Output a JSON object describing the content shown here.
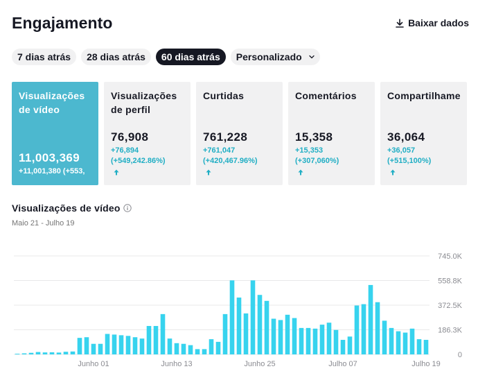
{
  "header": {
    "title": "Engajamento",
    "download_label": "Baixar dados",
    "download_icon": "download-icon"
  },
  "tabs": [
    {
      "label": "7 dias atrás",
      "active": false
    },
    {
      "label": "28 dias atrás",
      "active": false
    },
    {
      "label": "60 dias atrás",
      "active": true
    },
    {
      "label": "Personalizado",
      "active": false,
      "dropdown": true
    }
  ],
  "cards": [
    {
      "label": "Visualizações de vídeo",
      "value": "11,003,369",
      "delta": "+11,001,380 (+553,",
      "active": true
    },
    {
      "label": "Visualizações de perfil",
      "value": "76,908",
      "delta_line1": "+76,894",
      "delta_line2": "(+549,242.86%)",
      "arrow_icon": "arrow-up-icon"
    },
    {
      "label": "Curtidas",
      "value": "761,228",
      "delta_line1": "+761,047",
      "delta_line2": "(+420,467.96%)",
      "arrow_icon": "arrow-up-icon"
    },
    {
      "label": "Comentários",
      "value": "15,358",
      "delta_line1": "+15,353",
      "delta_line2": "(+307,060%)",
      "arrow_icon": "arrow-up-icon"
    },
    {
      "label": "Compartilhame",
      "value": "36,064",
      "delta_line1": "+36,057",
      "delta_line2": "(+515,100%)",
      "arrow_icon": "arrow-up-icon"
    }
  ],
  "chart_section": {
    "title": "Visualizações de vídeo",
    "info_icon": "info-icon",
    "date_range": "Maio 21 - Julho 19"
  },
  "colors": {
    "accent": "#4cb8cf",
    "bar": "#37d3ee",
    "delta_text": "#20aec4"
  },
  "chart_data": {
    "type": "bar",
    "x_tick_labels": [
      "Junho 01",
      "Junho 13",
      "Junho 25",
      "Julho 07",
      "Julho 19"
    ],
    "y_tick_labels": [
      "745.0K",
      "558.8K",
      "372.5K",
      "186.3K",
      "0"
    ],
    "ylim": [
      0,
      745000
    ],
    "grid": true,
    "x": [
      "May 21",
      "May 22",
      "May 23",
      "May 24",
      "May 25",
      "May 26",
      "May 27",
      "May 28",
      "May 29",
      "May 30",
      "May 31",
      "Jun 01",
      "Jun 02",
      "Jun 03",
      "Jun 04",
      "Jun 05",
      "Jun 06",
      "Jun 07",
      "Jun 08",
      "Jun 09",
      "Jun 10",
      "Jun 11",
      "Jun 12",
      "Jun 13",
      "Jun 14",
      "Jun 15",
      "Jun 16",
      "Jun 17",
      "Jun 18",
      "Jun 19",
      "Jun 20",
      "Jun 21",
      "Jun 22",
      "Jun 23",
      "Jun 24",
      "Jun 25",
      "Jun 26",
      "Jun 27",
      "Jun 28",
      "Jun 29",
      "Jun 30",
      "Jul 01",
      "Jul 02",
      "Jul 03",
      "Jul 04",
      "Jul 05",
      "Jul 06",
      "Jul 07",
      "Jul 08",
      "Jul 09",
      "Jul 10",
      "Jul 11",
      "Jul 12",
      "Jul 13",
      "Jul 14",
      "Jul 15",
      "Jul 16",
      "Jul 17",
      "Jul 18",
      "Jul 19"
    ],
    "values": [
      5000,
      8000,
      12000,
      18000,
      15000,
      16000,
      14000,
      20000,
      22000,
      125000,
      130000,
      80000,
      80000,
      155000,
      150000,
      145000,
      140000,
      130000,
      120000,
      215000,
      215000,
      305000,
      120000,
      85000,
      80000,
      70000,
      40000,
      40000,
      115000,
      95000,
      305000,
      560000,
      430000,
      310000,
      560000,
      450000,
      405000,
      270000,
      260000,
      300000,
      275000,
      200000,
      200000,
      195000,
      225000,
      240000,
      185000,
      110000,
      135000,
      370000,
      380000,
      525000,
      395000,
      255000,
      200000,
      175000,
      165000,
      195000,
      115000,
      110000
    ]
  }
}
